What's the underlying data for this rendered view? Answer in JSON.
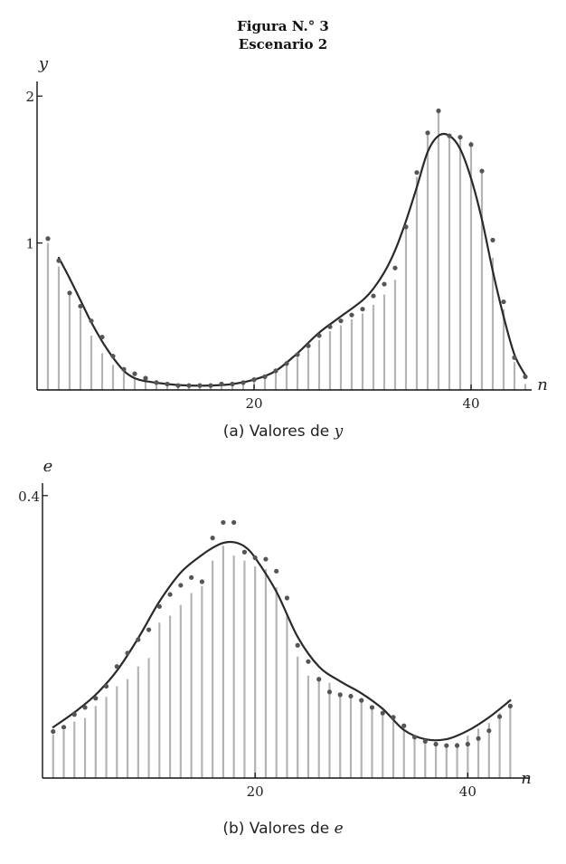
{
  "figure": {
    "title_line1": "Figura N.° 3",
    "title_line2": "Escenario 2"
  },
  "chart_data": [
    {
      "type": "bar",
      "panel": "a",
      "caption_prefix": "(a) Valores de",
      "caption_var": "y",
      "ylabel": "y",
      "xlabel": "n",
      "xlim": [
        0,
        45.5
      ],
      "ylim": [
        0,
        2.1
      ],
      "xticks": [
        20,
        40
      ],
      "yticks": [
        1,
        2
      ],
      "x": [
        1,
        2,
        3,
        4,
        5,
        6,
        7,
        8,
        9,
        10,
        11,
        12,
        13,
        14,
        15,
        16,
        17,
        18,
        19,
        20,
        21,
        22,
        23,
        24,
        25,
        26,
        27,
        28,
        29,
        30,
        31,
        32,
        33,
        34,
        35,
        36,
        37,
        38,
        39,
        40,
        41,
        42,
        43,
        44,
        45
      ],
      "bar_values": [
        1.0,
        0.84,
        0.65,
        0.55,
        0.37,
        0.25,
        0.17,
        0.12,
        0.08,
        0.07,
        0.05,
        0.04,
        0.03,
        0.03,
        0.03,
        0.03,
        0.04,
        0.04,
        0.05,
        0.07,
        0.1,
        0.13,
        0.17,
        0.22,
        0.28,
        0.34,
        0.4,
        0.44,
        0.48,
        0.52,
        0.58,
        0.65,
        0.75,
        1.1,
        1.45,
        1.75,
        1.9,
        1.73,
        1.73,
        1.69,
        1.5,
        0.9,
        0.55,
        0.19,
        0.04
      ],
      "points": [
        1.03,
        0.88,
        0.66,
        0.57,
        0.47,
        0.36,
        0.23,
        0.14,
        0.11,
        0.08,
        0.05,
        0.04,
        0.03,
        0.03,
        0.03,
        0.03,
        0.04,
        0.04,
        0.05,
        0.07,
        0.09,
        0.13,
        0.18,
        0.24,
        0.3,
        0.37,
        0.43,
        0.47,
        0.51,
        0.55,
        0.64,
        0.72,
        0.83,
        1.11,
        1.48,
        1.75,
        1.9,
        1.73,
        1.72,
        1.67,
        1.49,
        1.02,
        0.6,
        0.22,
        0.09
      ],
      "fitted_curve": {
        "x": [
          2,
          3,
          4,
          5,
          6,
          7,
          8,
          9,
          10,
          12,
          14,
          16,
          18,
          20,
          22,
          24,
          26,
          28,
          30,
          31,
          32,
          33,
          34,
          35,
          36,
          37,
          38,
          39,
          40,
          41,
          42,
          43,
          44,
          45
        ],
        "y": [
          0.9,
          0.76,
          0.61,
          0.46,
          0.33,
          0.22,
          0.13,
          0.08,
          0.06,
          0.04,
          0.03,
          0.03,
          0.04,
          0.07,
          0.13,
          0.25,
          0.39,
          0.5,
          0.61,
          0.69,
          0.8,
          0.95,
          1.15,
          1.38,
          1.62,
          1.73,
          1.73,
          1.64,
          1.44,
          1.16,
          0.81,
          0.5,
          0.24,
          0.1
        ]
      }
    },
    {
      "type": "bar",
      "panel": "b",
      "caption_prefix": "(b) Valores de",
      "caption_var": "e",
      "ylabel": "e",
      "xlabel": "n",
      "xlim": [
        0,
        45.5
      ],
      "ylim": [
        0,
        0.41
      ],
      "xticks": [
        20,
        40
      ],
      "yticks": [
        0.4
      ],
      "x": [
        1,
        2,
        3,
        4,
        5,
        6,
        7,
        8,
        9,
        10,
        11,
        12,
        13,
        14,
        15,
        16,
        17,
        18,
        19,
        20,
        21,
        22,
        23,
        24,
        25,
        26,
        27,
        28,
        29,
        30,
        31,
        32,
        33,
        34,
        35,
        36,
        37,
        38,
        39,
        40,
        41,
        42,
        43,
        44
      ],
      "bar_values": [
        0.062,
        0.068,
        0.08,
        0.085,
        0.102,
        0.115,
        0.13,
        0.14,
        0.158,
        0.17,
        0.22,
        0.23,
        0.245,
        0.262,
        0.272,
        0.308,
        0.329,
        0.315,
        0.308,
        0.3,
        0.296,
        0.27,
        0.23,
        0.172,
        0.145,
        0.14,
        0.135,
        0.12,
        0.115,
        0.11,
        0.1,
        0.095,
        0.08,
        0.07,
        0.06,
        0.055,
        0.05,
        0.045,
        0.05,
        0.06,
        0.07,
        0.078,
        0.092,
        0.1
      ],
      "points": [
        0.066,
        0.072,
        0.09,
        0.1,
        0.113,
        0.13,
        0.158,
        0.177,
        0.196,
        0.21,
        0.243,
        0.26,
        0.273,
        0.284,
        0.278,
        0.34,
        0.362,
        0.362,
        0.32,
        0.312,
        0.31,
        0.293,
        0.255,
        0.188,
        0.165,
        0.14,
        0.122,
        0.118,
        0.116,
        0.11,
        0.1,
        0.092,
        0.086,
        0.074,
        0.058,
        0.052,
        0.048,
        0.046,
        0.046,
        0.048,
        0.056,
        0.067,
        0.087,
        0.102
      ],
      "fitted_curve": {
        "x": [
          1,
          3,
          5,
          7,
          9,
          11,
          13,
          15,
          16,
          17,
          18,
          19,
          20,
          22,
          24,
          26,
          28,
          30,
          32,
          34,
          36,
          38,
          40,
          42,
          44
        ],
        "y": [
          0.072,
          0.093,
          0.118,
          0.152,
          0.198,
          0.25,
          0.291,
          0.316,
          0.326,
          0.333,
          0.334,
          0.328,
          0.312,
          0.264,
          0.2,
          0.158,
          0.137,
          0.12,
          0.098,
          0.068,
          0.055,
          0.055,
          0.067,
          0.086,
          0.11
        ]
      }
    }
  ]
}
